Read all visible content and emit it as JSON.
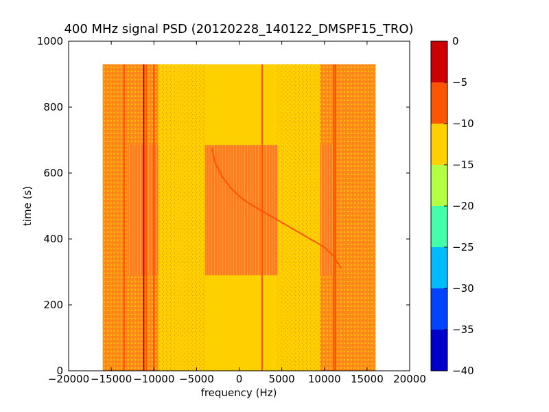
{
  "chart_data": {
    "type": "heatmap",
    "title": "400 MHz signal PSD (20120228_140122_DMSPF15_TRO)",
    "xlabel": "frequency (Hz)",
    "ylabel": "time (s)",
    "xlim": [
      -20000,
      20000
    ],
    "ylim": [
      0,
      1000
    ],
    "xticks": [
      -20000,
      -15000,
      -10000,
      -5000,
      0,
      5000,
      10000,
      15000,
      20000
    ],
    "xtick_labels": [
      "−20000",
      "−15000",
      "−10000",
      "−5000",
      "0",
      "5000",
      "10000",
      "15000",
      "20000"
    ],
    "yticks": [
      0,
      200,
      400,
      600,
      800,
      1000
    ],
    "ytick_labels": [
      "0",
      "200",
      "400",
      "600",
      "800",
      "1000"
    ],
    "data_extent": {
      "x": [
        -16000,
        16000
      ],
      "y": [
        0,
        930
      ]
    },
    "colorbar": {
      "min": -40,
      "max": 0,
      "ticks": [
        0,
        -5,
        -10,
        -15,
        -20,
        -25,
        -30,
        -35,
        -40
      ],
      "tick_labels": [
        "0",
        "−5",
        "−10",
        "−15",
        "−20",
        "−25",
        "−30",
        "−35",
        "−40"
      ],
      "levels": [
        {
          "from": -40,
          "to": -35,
          "color": "#0000cc"
        },
        {
          "from": -35,
          "to": -30,
          "color": "#0044ff"
        },
        {
          "from": -30,
          "to": -25,
          "color": "#00bbff"
        },
        {
          "from": -25,
          "to": -20,
          "color": "#44ffaa"
        },
        {
          "from": -20,
          "to": -15,
          "color": "#b2ff44"
        },
        {
          "from": -15,
          "to": -10,
          "color": "#ffd000"
        },
        {
          "from": -10,
          "to": -5,
          "color": "#ff5500"
        },
        {
          "from": -5,
          "to": 0,
          "color": "#cc0000"
        }
      ]
    },
    "background_level": -12.5,
    "regions": [
      {
        "x": [
          -16000,
          -9500
        ],
        "y": [
          0,
          930
        ],
        "level": -7.5
      },
      {
        "x": [
          9500,
          16000
        ],
        "y": [
          0,
          930
        ],
        "level": -7.5
      },
      {
        "x": [
          -13000,
          11000
        ],
        "y": [
          290,
          685
        ],
        "level": -7.5,
        "pattern": "speckle"
      },
      {
        "x": [
          -9500,
          -4000
        ],
        "y": [
          0,
          930
        ],
        "level": -12.5,
        "pattern": "speckle"
      },
      {
        "x": [
          4500,
          9500
        ],
        "y": [
          0,
          930
        ],
        "level": -12.5,
        "pattern": "speckle"
      }
    ],
    "vertical_lines": [
      {
        "x": -13500,
        "y": [
          0,
          930
        ],
        "level": -7.5
      },
      {
        "x": -11200,
        "y": [
          0,
          930
        ],
        "level": -2.5
      },
      {
        "x": -10900,
        "y": [
          0,
          930
        ],
        "level": -7.5
      },
      {
        "x": -10000,
        "y": [
          0,
          930
        ],
        "level": -7.5
      },
      {
        "x": 2700,
        "y": [
          0,
          930
        ],
        "level": -7.5
      },
      {
        "x": 11100,
        "y": [
          0,
          930
        ],
        "level": -7.5
      },
      {
        "x": 11300,
        "y": [
          0,
          930
        ],
        "level": -7.5
      }
    ],
    "doppler_track": {
      "level": -7.5,
      "points": [
        [
          -3200,
          675
        ],
        [
          -2800,
          630
        ],
        [
          -2000,
          590
        ],
        [
          -1000,
          555
        ],
        [
          0,
          530
        ],
        [
          1000,
          510
        ],
        [
          2000,
          495
        ],
        [
          3000,
          480
        ],
        [
          4000,
          465
        ],
        [
          5000,
          450
        ],
        [
          6000,
          435
        ],
        [
          7000,
          420
        ],
        [
          8000,
          405
        ],
        [
          9000,
          390
        ],
        [
          10000,
          375
        ],
        [
          11000,
          350
        ],
        [
          12000,
          310
        ]
      ]
    }
  }
}
